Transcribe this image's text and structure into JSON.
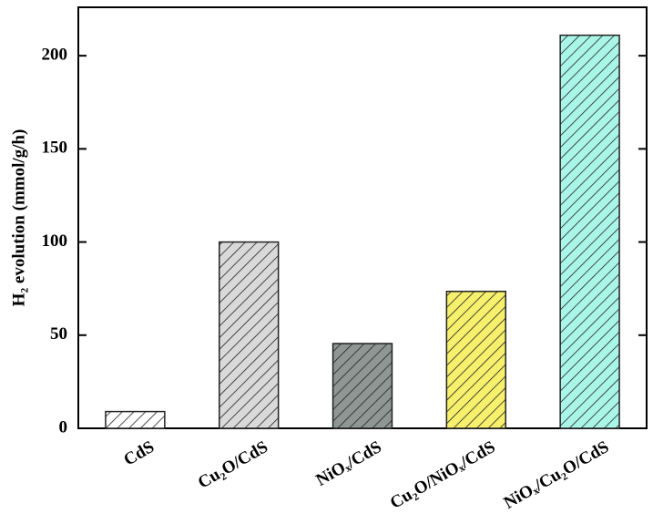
{
  "chart_data": {
    "type": "bar",
    "y_label": "H₂ evolution (mmol/g/h)",
    "categories": [
      "CdS",
      "Cu₂O/CdS",
      "NiOₓ/CdS",
      "Cu₂O/NiOₓ/CdS",
      "NiOₓ/Cu₂O/CdS"
    ],
    "values": [
      9,
      100,
      45.5,
      73.5,
      211
    ],
    "colors": [
      "#ffffff",
      "#d9d9d9",
      "#8e9793",
      "#f6f06c",
      "#a9f6e9"
    ],
    "ylim": [
      0,
      226
    ],
    "yticks": [
      0,
      50,
      100,
      150,
      200
    ],
    "grid": false
  }
}
